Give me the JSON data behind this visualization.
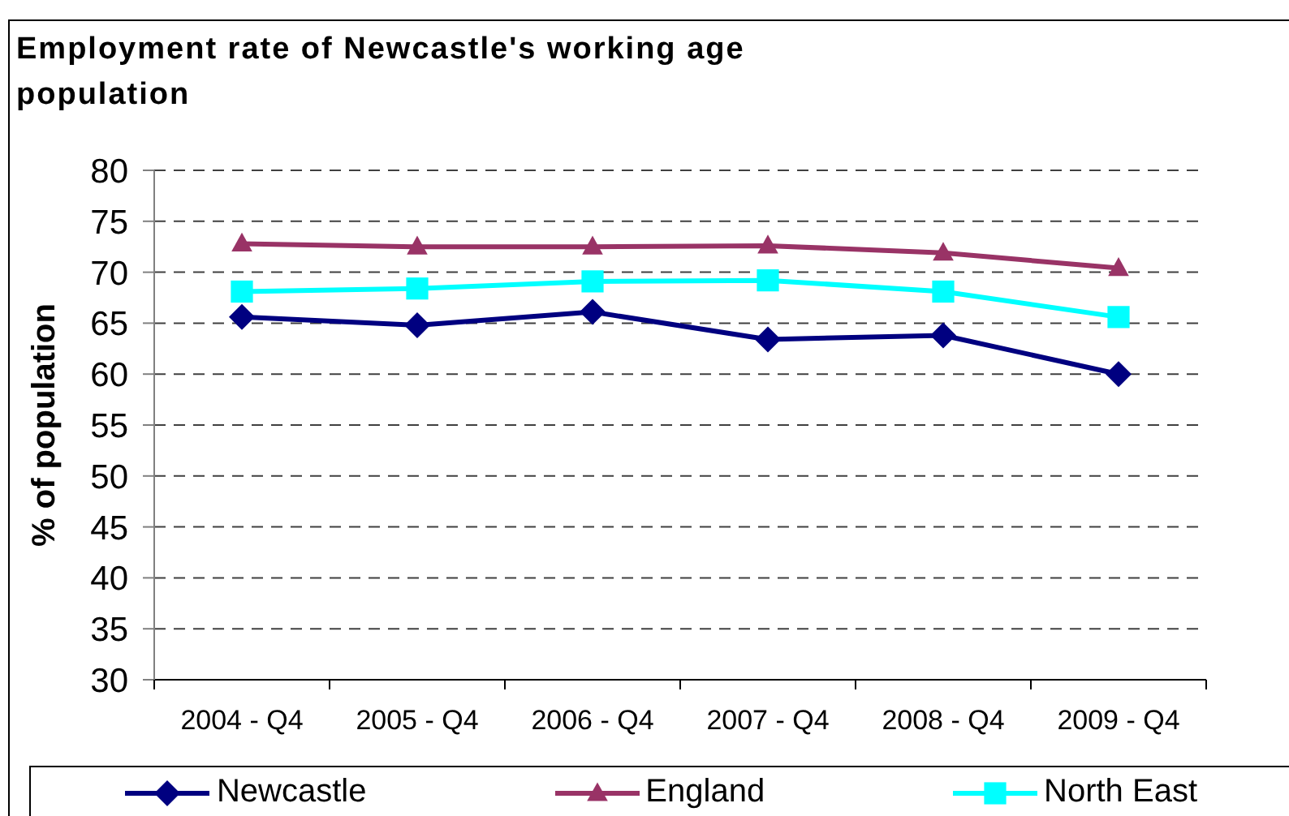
{
  "chart_data": {
    "type": "line",
    "title": "Employment rate of Newcastle's working age population",
    "ylabel": "% of population",
    "categories": [
      "2004 - Q4",
      "2005 - Q4",
      "2006 - Q4",
      "2007 - Q4",
      "2008 - Q4",
      "2009 - Q4"
    ],
    "series": [
      {
        "name": "Newcastle",
        "color": "#000080",
        "marker": "diamond",
        "values": [
          65.6,
          64.8,
          66.1,
          63.4,
          63.8,
          60.0
        ]
      },
      {
        "name": "England",
        "color": "#993366",
        "marker": "triangle",
        "values": [
          72.8,
          72.5,
          72.5,
          72.6,
          71.9,
          70.4
        ]
      },
      {
        "name": "North East",
        "color": "#00ffff",
        "marker": "square",
        "values": [
          68.1,
          68.4,
          69.1,
          69.2,
          68.1,
          65.6
        ]
      }
    ],
    "ylim": [
      30,
      80
    ],
    "yticks": [
      30,
      35,
      40,
      45,
      50,
      55,
      60,
      65,
      70,
      75,
      80
    ],
    "grid": "y",
    "legend": "bottom",
    "line_style": "solid"
  }
}
